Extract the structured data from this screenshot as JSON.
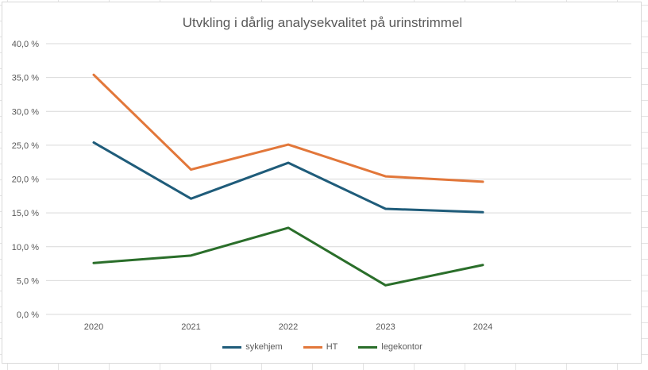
{
  "chart_data": {
    "type": "line",
    "title": "Utvkling i dårlig analysekvalitet på urinstrimmel",
    "categories": [
      "2020",
      "2021",
      "2022",
      "2023",
      "2024"
    ],
    "y_ticks": [
      "0,0 %",
      "5,0 %",
      "10,0 %",
      "15,0 %",
      "20,0 %",
      "25,0 %",
      "30,0 %",
      "35,0 %",
      "40,0 %"
    ],
    "ylim": [
      0,
      40
    ],
    "series": [
      {
        "name": "sykehjem",
        "color": "#1f5c7a",
        "values": [
          25.4,
          17.1,
          22.4,
          15.6,
          15.1
        ]
      },
      {
        "name": "HT",
        "color": "#e2773a",
        "values": [
          35.4,
          21.4,
          25.1,
          20.4,
          19.6
        ]
      },
      {
        "name": "legekontor",
        "color": "#2a6e2a",
        "values": [
          7.6,
          8.7,
          12.8,
          4.3,
          7.3
        ]
      }
    ],
    "grid": true,
    "legend_position": "bottom"
  }
}
